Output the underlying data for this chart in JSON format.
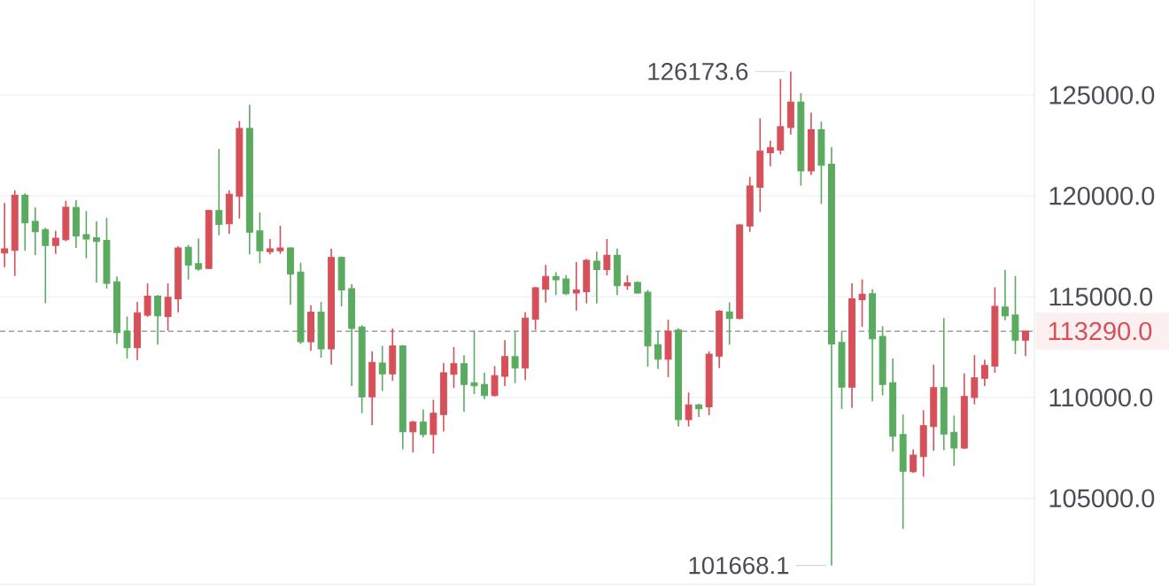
{
  "chart_data": {
    "type": "candlestick",
    "categories": [
      null,
      null,
      null,
      null,
      null,
      null,
      null,
      null,
      null,
      null,
      null,
      null,
      null,
      null,
      null,
      null,
      null,
      null,
      null,
      null,
      null,
      null,
      null,
      null,
      null,
      null,
      null,
      null,
      null,
      null,
      null,
      null,
      null,
      null,
      null,
      null,
      null,
      null,
      null,
      null,
      null,
      null,
      null,
      null,
      null,
      null,
      null,
      null,
      null,
      null,
      null,
      null,
      null,
      null,
      null,
      null,
      null,
      null,
      null,
      null,
      null,
      null,
      null,
      null,
      null,
      null,
      null,
      null,
      null,
      null,
      null,
      null,
      null,
      null,
      null,
      null,
      null,
      null,
      null,
      null,
      null,
      null,
      null,
      null,
      null,
      null,
      null,
      null,
      null,
      null,
      null,
      null,
      null,
      null,
      null,
      null,
      null,
      null,
      null,
      null,
      null
    ],
    "ohlc": [
      [
        117170,
        119650,
        116470,
        117380
      ],
      [
        117300,
        120280,
        116030,
        120030
      ],
      [
        120030,
        120130,
        117280,
        118660
      ],
      [
        118740,
        119430,
        117060,
        118220
      ],
      [
        118330,
        118420,
        114670,
        117540
      ],
      [
        117540,
        118270,
        117130,
        117900
      ],
      [
        117830,
        119760,
        117750,
        119440
      ],
      [
        119430,
        119790,
        117420,
        118010
      ],
      [
        118080,
        119250,
        116910,
        117860
      ],
      [
        117930,
        118740,
        115710,
        117740
      ],
      [
        117790,
        118910,
        115410,
        115660
      ],
      [
        115740,
        116000,
        112660,
        113220
      ],
      [
        113290,
        114010,
        111930,
        112470
      ],
      [
        112470,
        114740,
        111850,
        114200
      ],
      [
        114080,
        115660,
        114000,
        115030
      ],
      [
        115030,
        115080,
        112620,
        114050
      ],
      [
        114020,
        115660,
        113320,
        114970
      ],
      [
        114900,
        117500,
        114230,
        117420
      ],
      [
        117450,
        117570,
        115850,
        116570
      ],
      [
        116640,
        117890,
        116290,
        116370
      ],
      [
        116400,
        119300,
        116380,
        119280
      ],
      [
        119280,
        122330,
        118050,
        118590
      ],
      [
        118620,
        120280,
        118120,
        120090
      ],
      [
        119980,
        123720,
        118880,
        123350
      ],
      [
        123350,
        124530,
        117100,
        118200
      ],
      [
        118270,
        119180,
        116660,
        117280
      ],
      [
        117230,
        117860,
        117100,
        117380
      ],
      [
        117280,
        118520,
        117130,
        117420
      ],
      [
        117420,
        117450,
        114600,
        116130
      ],
      [
        116220,
        116690,
        112660,
        112760
      ],
      [
        112760,
        114570,
        112320,
        114240
      ],
      [
        114240,
        114740,
        111970,
        112410
      ],
      [
        112410,
        117380,
        111630,
        116950
      ],
      [
        116950,
        117000,
        114520,
        115330
      ],
      [
        115400,
        115620,
        110570,
        113420
      ],
      [
        113500,
        113590,
        109220,
        110030
      ],
      [
        110030,
        112290,
        108630,
        111740
      ],
      [
        111710,
        112560,
        110320,
        111170
      ],
      [
        111170,
        113420,
        110830,
        112560
      ],
      [
        112560,
        112600,
        107430,
        108300
      ],
      [
        108300,
        108850,
        107280,
        108780
      ],
      [
        108780,
        109410,
        108020,
        108160
      ],
      [
        108160,
        109880,
        107210,
        109220
      ],
      [
        109150,
        111710,
        108310,
        111230
      ],
      [
        111150,
        112510,
        110470,
        111680
      ],
      [
        111680,
        112100,
        109290,
        110650
      ],
      [
        110730,
        113320,
        110170,
        110580
      ],
      [
        110650,
        111240,
        109920,
        110100
      ],
      [
        110100,
        111560,
        110050,
        111090
      ],
      [
        111050,
        112840,
        110570,
        112030
      ],
      [
        112030,
        113250,
        110710,
        111460
      ],
      [
        111460,
        114240,
        110860,
        113940
      ],
      [
        113880,
        115490,
        113350,
        115440
      ],
      [
        115370,
        116570,
        114710,
        116000
      ],
      [
        116000,
        116220,
        115080,
        115840
      ],
      [
        115880,
        116070,
        115080,
        115150
      ],
      [
        115180,
        116720,
        114310,
        115330
      ],
      [
        115250,
        116880,
        114670,
        116810
      ],
      [
        116760,
        117230,
        114670,
        116350
      ],
      [
        116350,
        117860,
        116060,
        117060
      ],
      [
        117060,
        117390,
        115080,
        115540
      ],
      [
        115540,
        116060,
        115340,
        115690
      ],
      [
        115710,
        115760,
        115150,
        115180
      ],
      [
        115220,
        115340,
        111530,
        112560
      ],
      [
        112620,
        113290,
        111410,
        111900
      ],
      [
        111900,
        113860,
        111010,
        113290
      ],
      [
        113350,
        113440,
        108560,
        108900
      ],
      [
        108900,
        110250,
        108560,
        109630
      ],
      [
        109630,
        109690,
        109030,
        109440
      ],
      [
        109540,
        112290,
        109120,
        112150
      ],
      [
        112050,
        114330,
        111460,
        114280
      ],
      [
        114250,
        114720,
        112620,
        113920
      ],
      [
        113920,
        118600,
        113880,
        118560
      ],
      [
        118510,
        120950,
        118220,
        120500
      ],
      [
        120430,
        123850,
        119200,
        122220
      ],
      [
        122140,
        122740,
        121470,
        122390
      ],
      [
        122280,
        125800,
        122060,
        123440
      ],
      [
        123390,
        126173.6,
        123040,
        124660
      ],
      [
        124660,
        125100,
        120510,
        121240
      ],
      [
        121240,
        124130,
        121030,
        123280
      ],
      [
        123280,
        123690,
        119600,
        121520
      ],
      [
        121570,
        122420,
        101668.1,
        112650
      ],
      [
        112730,
        113270,
        109430,
        110510
      ],
      [
        110510,
        115660,
        109480,
        114900
      ],
      [
        114850,
        115860,
        113500,
        115130
      ],
      [
        115150,
        115370,
        109810,
        112910
      ],
      [
        113030,
        113540,
        110100,
        110650
      ],
      [
        110730,
        111930,
        107320,
        108080
      ],
      [
        108160,
        109150,
        103480,
        106340
      ],
      [
        106320,
        107430,
        106250,
        107140
      ],
      [
        107070,
        109370,
        106070,
        108600
      ],
      [
        108560,
        111630,
        107360,
        110490
      ],
      [
        110490,
        113940,
        107390,
        108190
      ],
      [
        108270,
        109100,
        106610,
        107490
      ],
      [
        107490,
        111200,
        107450,
        110050
      ],
      [
        110000,
        112100,
        109660,
        110980
      ],
      [
        110950,
        111880,
        110570,
        111590
      ],
      [
        111560,
        115470,
        111230,
        114520
      ],
      [
        114490,
        116320,
        113830,
        114050
      ],
      [
        114090,
        116030,
        112150,
        112840
      ],
      [
        112840,
        113320,
        112050,
        113290
      ]
    ],
    "colors": [
      "#d6505a",
      "#d6505a",
      "#5aab60",
      "#5aab60",
      "#5aab60",
      "#d6505a",
      "#d6505a",
      "#5aab60",
      "#5aab60",
      "#5aab60",
      "#5aab60",
      "#5aab60",
      "#5aab60",
      "#d6505a",
      "#d6505a",
      "#5aab60",
      "#d6505a",
      "#d6505a",
      "#5aab60",
      "#5aab60",
      "#d6505a",
      "#5aab60",
      "#d6505a",
      "#d6505a",
      "#5aab60",
      "#5aab60",
      "#d6505a",
      "#d6505a",
      "#5aab60",
      "#5aab60",
      "#d6505a",
      "#5aab60",
      "#d6505a",
      "#5aab60",
      "#5aab60",
      "#5aab60",
      "#d6505a",
      "#5aab60",
      "#d6505a",
      "#5aab60",
      "#d6505a",
      "#5aab60",
      "#d6505a",
      "#d6505a",
      "#d6505a",
      "#5aab60",
      "#5aab60",
      "#5aab60",
      "#d6505a",
      "#d6505a",
      "#5aab60",
      "#d6505a",
      "#d6505a",
      "#d6505a",
      "#5aab60",
      "#5aab60",
      "#d6505a",
      "#d6505a",
      "#5aab60",
      "#d6505a",
      "#5aab60",
      "#d6505a",
      "#5aab60",
      "#5aab60",
      "#5aab60",
      "#d6505a",
      "#5aab60",
      "#d6505a",
      "#5aab60",
      "#d6505a",
      "#d6505a",
      "#5aab60",
      "#d6505a",
      "#d6505a",
      "#d6505a",
      "#d6505a",
      "#d6505a",
      "#d6505a",
      "#5aab60",
      "#d6505a",
      "#5aab60",
      "#5aab60",
      "#5aab60",
      "#d6505a",
      "#d6505a",
      "#5aab60",
      "#5aab60",
      "#5aab60",
      "#5aab60",
      "#d6505a",
      "#d6505a",
      "#d6505a",
      "#5aab60",
      "#5aab60",
      "#d6505a",
      "#d6505a",
      "#d6505a",
      "#d6505a",
      "#5aab60",
      "#5aab60",
      "#d6505a"
    ],
    "ylim": [
      100730,
      129720
    ],
    "yticks": [
      {
        "value": 105000,
        "label": "105000.0"
      },
      {
        "value": 110000,
        "label": "110000.0"
      },
      {
        "value": 115000,
        "label": "115000.0"
      },
      {
        "value": 120000,
        "label": "120000.0"
      },
      {
        "value": 125000,
        "label": "125000.0"
      }
    ],
    "tick_labels": "y",
    "grid": "y",
    "ref_lines": [
      {
        "axis": "y",
        "value": 113290,
        "label": "113290.0",
        "color": "#8a8a8a",
        "line_style": "dashed"
      }
    ],
    "annotations": [
      "126173.6",
      "101668.1"
    ]
  }
}
